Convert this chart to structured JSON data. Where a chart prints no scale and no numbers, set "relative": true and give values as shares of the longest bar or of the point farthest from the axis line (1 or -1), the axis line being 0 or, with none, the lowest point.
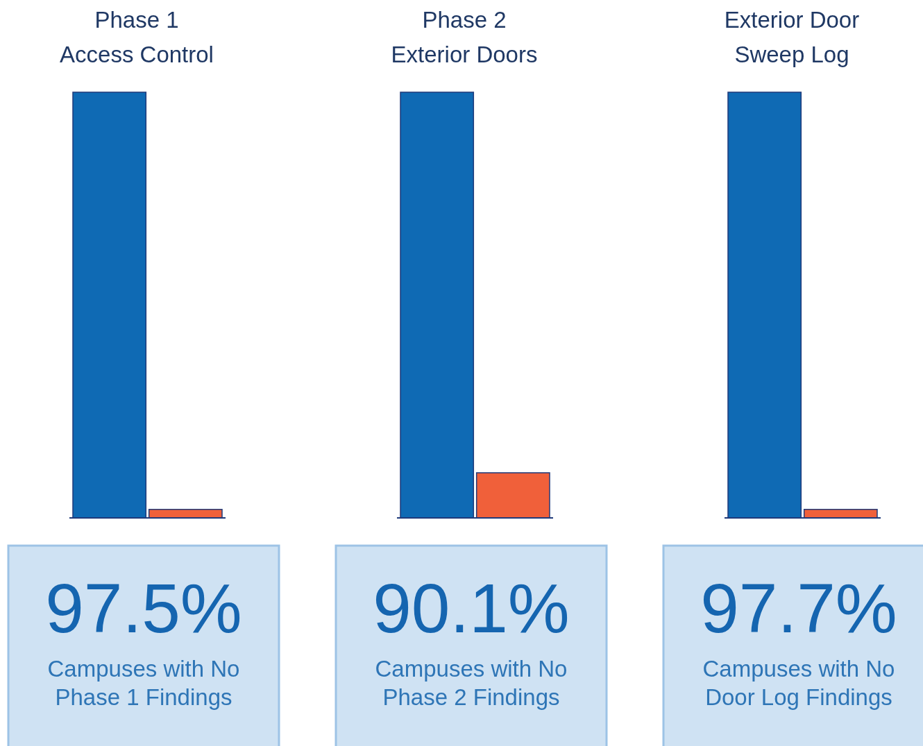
{
  "chart_data": [
    {
      "type": "bar",
      "relative": true,
      "title": "Phase 1\nAccess Control",
      "categories": [
        null,
        null
      ],
      "values": [
        1,
        0.02
      ],
      "colors": [
        "#0f6ab4",
        "#f0603a"
      ],
      "annotations": [
        "97.5%",
        "Campuses with No\nPhase 1 Findings"
      ]
    },
    {
      "type": "bar",
      "relative": true,
      "title": "Phase 2\nExterior Doors",
      "categories": [
        null,
        null
      ],
      "values": [
        1,
        0.106
      ],
      "colors": [
        "#0f6ab4",
        "#f0603a"
      ],
      "annotations": [
        "90.1%",
        "Campuses with No\nPhase 2 Findings"
      ]
    },
    {
      "type": "bar",
      "relative": true,
      "title": "Exterior Door\nSweep Log",
      "categories": [
        null,
        null
      ],
      "values": [
        1,
        0.02
      ],
      "colors": [
        "#0f6ab4",
        "#f0603a"
      ],
      "annotations": [
        "97.7%",
        "Campuses with No\nDoor Log Findings"
      ]
    }
  ]
}
